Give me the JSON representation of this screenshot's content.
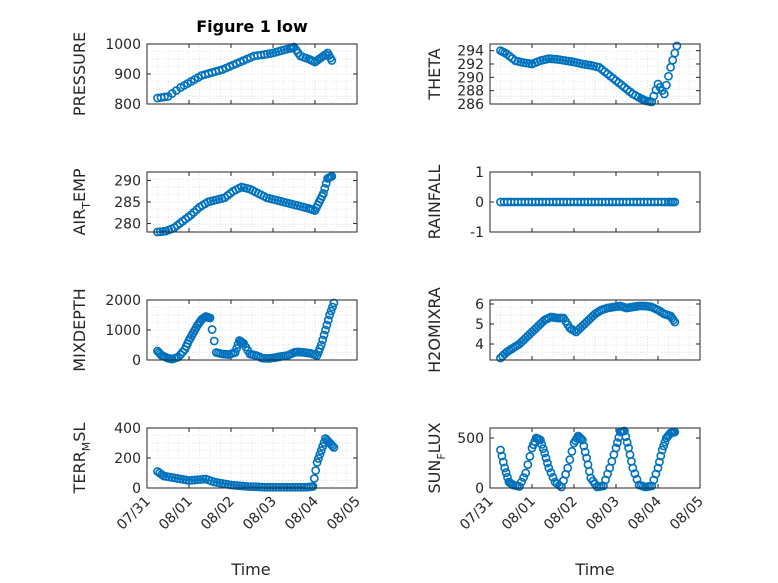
{
  "figure": {
    "title": "Figure 1 low",
    "xlabel": "Time",
    "x_ticks": [
      "07/31",
      "08/01",
      "08/02",
      "08/03",
      "08/04",
      "08/05"
    ],
    "marker_color": "#0072BD",
    "grid_color": "#d9d9d9"
  },
  "chart_data": [
    {
      "type": "scatter",
      "title": "Figure 1 low",
      "ylabel": "PRESSURE",
      "xlim": [
        0,
        5
      ],
      "ylim": [
        800,
        1000
      ],
      "yticks": [
        "800",
        "900",
        "1000"
      ],
      "grid": true,
      "x_tick_labels_shown": false,
      "series": [
        {
          "x": [
            0.25,
            0.5,
            0.8,
            1.05,
            1.3,
            1.55,
            1.8,
            2.05,
            2.3,
            2.55,
            2.8,
            3.0,
            3.2,
            3.4,
            3.5,
            3.65,
            3.85,
            4.0,
            4.15,
            4.3,
            4.4
          ],
          "y": [
            820,
            825,
            855,
            875,
            895,
            905,
            915,
            930,
            945,
            960,
            965,
            970,
            978,
            985,
            990,
            960,
            950,
            940,
            955,
            970,
            945
          ]
        }
      ]
    },
    {
      "type": "scatter",
      "ylabel": "THETA",
      "xlim": [
        0,
        5
      ],
      "ylim": [
        286,
        295
      ],
      "yticks": [
        "286",
        "288",
        "290",
        "292",
        "294"
      ],
      "grid": true,
      "x_tick_labels_shown": false,
      "series": [
        {
          "x": [
            0.25,
            0.4,
            0.6,
            0.8,
            1.0,
            1.2,
            1.4,
            1.6,
            1.8,
            2.0,
            2.2,
            2.4,
            2.6,
            2.8,
            3.0,
            3.2,
            3.4,
            3.6,
            3.7,
            3.85,
            4.0,
            4.15,
            4.3,
            4.45
          ],
          "y": [
            294,
            293.5,
            292.5,
            292.2,
            292,
            292.5,
            292.8,
            292.7,
            292.5,
            292.3,
            292,
            291.8,
            291.5,
            290.5,
            289.5,
            288.5,
            287.5,
            286.8,
            286.5,
            286.3,
            289,
            287.5,
            291.5,
            294.7
          ]
        }
      ]
    },
    {
      "type": "scatter",
      "ylabel": "AIR_TEMP",
      "xlim": [
        0,
        5
      ],
      "ylim": [
        278,
        292
      ],
      "yticks": [
        "280",
        "285",
        "290"
      ],
      "grid": true,
      "x_tick_labels_shown": false,
      "series": [
        {
          "x": [
            0.25,
            0.45,
            0.65,
            0.85,
            1.05,
            1.25,
            1.45,
            1.65,
            1.85,
            2.05,
            2.25,
            2.45,
            2.65,
            2.85,
            3.05,
            3.25,
            3.45,
            3.65,
            3.85,
            4.0,
            4.1,
            4.2,
            4.3,
            4.4
          ],
          "y": [
            278,
            278.2,
            279,
            280.5,
            282,
            283.8,
            285,
            285.5,
            286,
            287.5,
            288.5,
            288,
            287,
            286,
            285.5,
            285,
            284.5,
            284,
            283.5,
            283,
            285,
            287,
            290.5,
            291
          ]
        }
      ]
    },
    {
      "type": "scatter",
      "ylabel": "RAINFALL",
      "xlim": [
        0,
        5
      ],
      "ylim": [
        -1,
        1
      ],
      "yticks": [
        "-1",
        "0",
        "1"
      ],
      "grid": false,
      "x_tick_labels_shown": false,
      "series": [
        {
          "x": [
            0.25,
            0.5,
            0.75,
            1.0,
            1.25,
            1.5,
            1.75,
            2.0,
            2.25,
            2.5,
            2.75,
            3.0,
            3.25,
            3.5,
            3.75,
            4.0,
            4.25,
            4.4
          ],
          "y": [
            0,
            0,
            0,
            0,
            0,
            0,
            0,
            0,
            0,
            0,
            0,
            0,
            0,
            0,
            0,
            0,
            0,
            0
          ]
        }
      ]
    },
    {
      "type": "scatter",
      "ylabel": "MIXDEPTH",
      "xlim": [
        0,
        5
      ],
      "ylim": [
        0,
        2000
      ],
      "yticks": [
        "0",
        "1000",
        "2000"
      ],
      "grid": true,
      "x_tick_labels_shown": false,
      "series": [
        {
          "x": [
            0.25,
            0.35,
            0.5,
            0.6,
            0.75,
            0.9,
            1.0,
            1.1,
            1.2,
            1.3,
            1.4,
            1.5,
            1.65,
            1.8,
            1.95,
            2.1,
            2.2,
            2.3,
            2.45,
            2.6,
            2.75,
            2.9,
            3.05,
            3.2,
            3.35,
            3.5,
            3.6,
            3.75,
            3.9,
            4.05,
            4.15,
            4.25,
            4.35,
            4.45
          ],
          "y": [
            300,
            150,
            60,
            30,
            100,
            350,
            650,
            900,
            1150,
            1350,
            1450,
            1400,
            250,
            200,
            180,
            250,
            650,
            550,
            200,
            150,
            60,
            50,
            80,
            120,
            150,
            250,
            270,
            250,
            220,
            150,
            500,
            1000,
            1500,
            1900
          ]
        }
      ]
    },
    {
      "type": "scatter",
      "ylabel": "H2OMIXRA",
      "xlim": [
        0,
        5
      ],
      "ylim": [
        3.2,
        6.2
      ],
      "yticks": [
        "4",
        "5",
        "6"
      ],
      "grid": true,
      "x_tick_labels_shown": false,
      "series": [
        {
          "x": [
            0.25,
            0.4,
            0.55,
            0.7,
            0.85,
            1.0,
            1.15,
            1.3,
            1.45,
            1.6,
            1.75,
            1.9,
            2.05,
            2.2,
            2.35,
            2.5,
            2.65,
            2.8,
            2.95,
            3.1,
            3.25,
            3.4,
            3.55,
            3.7,
            3.85,
            4.0,
            4.15,
            4.3,
            4.4
          ],
          "y": [
            3.3,
            3.6,
            3.8,
            4.0,
            4.3,
            4.6,
            4.9,
            5.2,
            5.35,
            5.3,
            5.3,
            4.8,
            4.6,
            4.9,
            5.2,
            5.5,
            5.7,
            5.8,
            5.85,
            5.9,
            5.8,
            5.85,
            5.9,
            5.9,
            5.85,
            5.7,
            5.5,
            5.4,
            5.1
          ]
        }
      ]
    },
    {
      "type": "scatter",
      "ylabel": "TERR_MSL",
      "xlim": [
        0,
        5
      ],
      "ylim": [
        0,
        400
      ],
      "yticks": [
        "0",
        "200",
        "400"
      ],
      "grid": true,
      "x_tick_labels_shown": false,
      "series": [
        {
          "x": [
            0.25,
            0.4,
            0.6,
            0.8,
            1.0,
            1.2,
            1.4,
            1.6,
            1.8,
            2.0,
            2.2,
            2.4,
            2.6,
            2.8,
            3.0,
            3.2,
            3.4,
            3.6,
            3.8,
            3.95,
            4.05,
            4.15,
            4.25,
            4.35,
            4.45
          ],
          "y": [
            110,
            80,
            70,
            60,
            50,
            55,
            60,
            40,
            30,
            20,
            15,
            10,
            8,
            5,
            5,
            5,
            5,
            5,
            5,
            10,
            170,
            250,
            330,
            300,
            270
          ]
        }
      ]
    },
    {
      "type": "scatter",
      "ylabel": "SUN_FLUX",
      "xlim": [
        0,
        5
      ],
      "ylim": [
        0,
        600
      ],
      "yticks": [
        "0",
        "500"
      ],
      "grid": false,
      "x_tick_labels_shown": true,
      "series": [
        {
          "x": [
            0.25,
            0.35,
            0.45,
            0.55,
            0.7,
            0.85,
            1.0,
            1.1,
            1.2,
            1.3,
            1.4,
            1.55,
            1.7,
            1.85,
            2.0,
            2.1,
            2.2,
            2.3,
            2.4,
            2.55,
            2.7,
            2.85,
            3.0,
            3.1,
            3.2,
            3.3,
            3.4,
            3.55,
            3.7,
            3.85,
            4.0,
            4.1,
            4.2,
            4.3,
            4.4
          ],
          "y": [
            380,
            200,
            60,
            30,
            15,
            150,
            400,
            500,
            480,
            350,
            200,
            60,
            10,
            200,
            450,
            520,
            480,
            300,
            100,
            10,
            20,
            200,
            400,
            560,
            570,
            400,
            200,
            30,
            10,
            20,
            200,
            380,
            500,
            550,
            560
          ]
        }
      ]
    }
  ]
}
